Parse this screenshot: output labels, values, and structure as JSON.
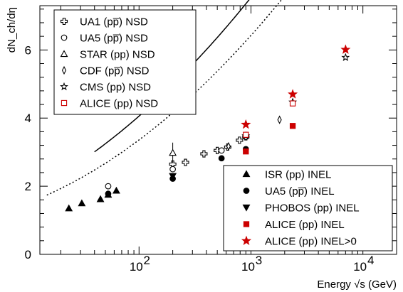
{
  "chart_data": {
    "type": "scatter",
    "xlabel": "Energy √s (GeV)",
    "ylabel": "dN_ch/dη",
    "xscale": "log",
    "xlim": [
      13,
      20000
    ],
    "ylim": [
      0,
      7.3
    ],
    "xticks": [
      {
        "value": 100,
        "label": "10",
        "exp": "2"
      },
      {
        "value": 1000,
        "label": "10",
        "exp": "3"
      },
      {
        "value": 10000,
        "label": "10",
        "exp": "4"
      }
    ],
    "yticks": [
      0,
      2,
      4,
      6
    ],
    "grid": false,
    "legends": [
      {
        "position": "top-left",
        "entries": [
          {
            "series": "UA1",
            "label": "UA1 (pp̅) NSD"
          },
          {
            "series": "UA5nsd",
            "label": "UA5 (pp̅) NSD"
          },
          {
            "series": "STAR",
            "label": "STAR (pp) NSD"
          },
          {
            "series": "CDF",
            "label": "CDF (pp̅) NSD"
          },
          {
            "series": "CMS",
            "label": "CMS (pp) NSD"
          },
          {
            "series": "ALICEnsd",
            "label": "ALICE (pp) NSD"
          }
        ]
      },
      {
        "position": "bottom-right",
        "entries": [
          {
            "series": "ISR",
            "label": "ISR (pp) INEL"
          },
          {
            "series": "UA5inel",
            "label": "UA5 (pp̅) INEL"
          },
          {
            "series": "PHOBOS",
            "label": "PHOBOS (pp) INEL"
          },
          {
            "series": "ALICEinel",
            "label": "ALICE (pp) INEL"
          },
          {
            "series": "ALICEinelgt0",
            "label": "ALICE (pp) INEL>0"
          }
        ]
      }
    ],
    "series": [
      {
        "key": "UA1",
        "marker": "plus-open",
        "color": "#000000",
        "points": [
          {
            "x": 200,
            "y": 2.65
          },
          {
            "x": 260,
            "y": 2.7
          },
          {
            "x": 380,
            "y": 2.95
          },
          {
            "x": 500,
            "y": 3.05
          },
          {
            "x": 620,
            "y": 3.15
          },
          {
            "x": 790,
            "y": 3.35
          },
          {
            "x": 900,
            "y": 3.45
          }
        ]
      },
      {
        "key": "UA5nsd",
        "marker": "circle-open",
        "color": "#000000",
        "points": [
          {
            "x": 53,
            "y": 2.0
          },
          {
            "x": 200,
            "y": 2.5
          },
          {
            "x": 546,
            "y": 3.05
          },
          {
            "x": 900,
            "y": 3.45
          }
        ]
      },
      {
        "key": "STAR",
        "marker": "triangle-open",
        "color": "#000000",
        "points": [
          {
            "x": 200,
            "y": 2.98,
            "err": 0.3
          }
        ]
      },
      {
        "key": "CDF",
        "marker": "diamond-open",
        "color": "#000000",
        "points": [
          {
            "x": 630,
            "y": 3.17
          },
          {
            "x": 1800,
            "y": 3.95
          }
        ]
      },
      {
        "key": "CMS",
        "marker": "star-open",
        "color": "#000000",
        "points": [
          {
            "x": 900,
            "y": 3.48
          },
          {
            "x": 2360,
            "y": 4.47
          },
          {
            "x": 7000,
            "y": 5.78
          }
        ]
      },
      {
        "key": "ALICEnsd",
        "marker": "square-open",
        "color": "#cc0000",
        "points": [
          {
            "x": 900,
            "y": 3.51
          },
          {
            "x": 2360,
            "y": 4.43
          }
        ]
      },
      {
        "key": "ISR",
        "marker": "triangle-filled",
        "color": "#000000",
        "points": [
          {
            "x": 23.6,
            "y": 1.35
          },
          {
            "x": 30.8,
            "y": 1.5
          },
          {
            "x": 45.2,
            "y": 1.62
          },
          {
            "x": 53,
            "y": 1.75
          },
          {
            "x": 62.7,
            "y": 1.87
          }
        ]
      },
      {
        "key": "UA5inel",
        "marker": "circle-filled",
        "color": "#000000",
        "points": [
          {
            "x": 53,
            "y": 1.78
          },
          {
            "x": 200,
            "y": 2.22
          },
          {
            "x": 546,
            "y": 2.82
          },
          {
            "x": 900,
            "y": 3.09
          }
        ]
      },
      {
        "key": "PHOBOS",
        "marker": "triangle-down-filled",
        "color": "#000000",
        "points": [
          {
            "x": 200,
            "y": 2.3
          }
        ]
      },
      {
        "key": "ALICEinel",
        "marker": "square-filled",
        "color": "#cc0000",
        "points": [
          {
            "x": 900,
            "y": 3.02
          },
          {
            "x": 2360,
            "y": 3.77
          }
        ]
      },
      {
        "key": "ALICEinelgt0",
        "marker": "star-filled",
        "color": "#cc0000",
        "points": [
          {
            "x": 900,
            "y": 3.81
          },
          {
            "x": 2360,
            "y": 4.7
          },
          {
            "x": 7000,
            "y": 6.01
          }
        ]
      }
    ],
    "fits": [
      {
        "style": "solid",
        "note": "NSD fit",
        "a": 0.72,
        "b": 0.1,
        "c": 0.0285,
        "xrange": [
          40,
          17000
        ]
      },
      {
        "style": "dashed",
        "note": "INEL>0 fit",
        "a": 0.78,
        "b": 0.16,
        "c": 0.0445,
        "xrange": [
          900,
          17000
        ]
      },
      {
        "style": "dotted",
        "note": "INEL fit",
        "a": 0.85,
        "b": 0.01,
        "c": 0.0285,
        "xrange": [
          15,
          17000
        ]
      }
    ]
  }
}
